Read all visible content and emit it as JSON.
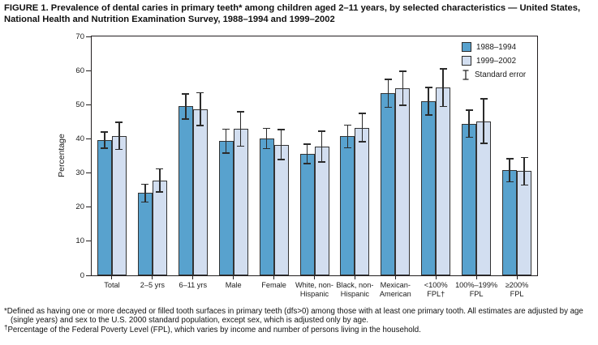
{
  "chart_data": {
    "type": "bar",
    "title": "FIGURE 1. Prevalence of dental caries in primary teeth* among children aged 2–11 years, by selected characteristics — United States, National Health and Nutrition Examination Survey, 1988–1994 and 1999–2002",
    "xlabel": "",
    "ylabel": "Percentage",
    "ylim": [
      0,
      70
    ],
    "yticks": [
      0,
      10,
      20,
      30,
      40,
      50,
      60,
      70
    ],
    "grid": false,
    "legend_position": "top-right-inside",
    "error_legend_label": "Standard error",
    "categories": [
      "Total",
      "2–5 yrs",
      "6–11 yrs",
      "Male",
      "Female",
      "White, non-\nHispanic",
      "Black, non-\nHispanic",
      "Mexican-\nAmerican",
      "<100%\nFPL†",
      "100%–199%\nFPL",
      "≥200%\nFPL"
    ],
    "series": [
      {
        "name": "1988–1994",
        "color": "#58a2ce",
        "values": [
          39.6,
          24.1,
          49.5,
          39.3,
          40.1,
          35.6,
          40.7,
          53.3,
          51.0,
          44.4,
          30.8
        ],
        "stderr": [
          2.4,
          2.6,
          3.7,
          3.5,
          3.0,
          2.9,
          3.3,
          4.1,
          4.0,
          4.0,
          3.4
        ]
      },
      {
        "name": "1999–2002",
        "color": "#d2def0",
        "values": [
          40.9,
          27.8,
          48.7,
          42.9,
          38.3,
          37.7,
          43.3,
          54.8,
          55.0,
          45.2,
          30.5
        ],
        "stderr": [
          4.0,
          3.4,
          4.8,
          5.0,
          4.4,
          4.5,
          4.1,
          5.0,
          5.5,
          6.5,
          4.0
        ]
      }
    ]
  },
  "footnotes": [
    {
      "marker": "*",
      "text": "Defined as having one or more decayed or filled tooth surfaces in primary teeth (dfs>0) among those with at least one primary tooth. All estimates are adjusted by age (single years) and sex to the U.S. 2000 standard population, except sex, which is adjusted only by age."
    },
    {
      "marker": "†",
      "text": "Percentage of the Federal Poverty Level (FPL), which varies by income and number of persons living in the household."
    }
  ]
}
